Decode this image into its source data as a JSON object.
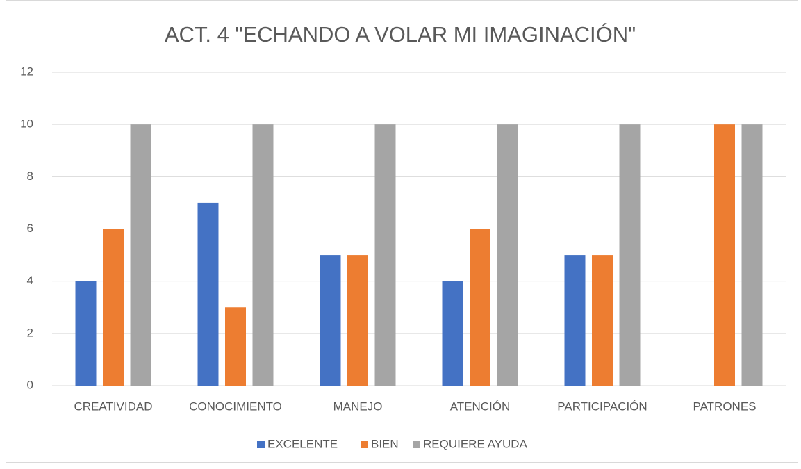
{
  "chart_data": {
    "type": "bar",
    "title": "ACT. 4 \"ECHANDO A VOLAR MI IMAGINACIÓN\"",
    "categories": [
      "CREATIVIDAD",
      "CONOCIMIENTO",
      "MANEJO",
      "ATENCIÓN",
      "PARTICIPACIÓN",
      "PATRONES"
    ],
    "series": [
      {
        "name": "EXCELENTE",
        "color": "#4472c4",
        "values": [
          4,
          7,
          5,
          4,
          5,
          0
        ]
      },
      {
        "name": "BIEN",
        "color": "#ed7d31",
        "values": [
          6,
          3,
          5,
          6,
          5,
          10
        ]
      },
      {
        "name": "REQUIERE AYUDA",
        "color": "#a5a5a5",
        "values": [
          10,
          10,
          10,
          10,
          10,
          10
        ]
      }
    ],
    "ylim": [
      0,
      12
    ],
    "yticks": [
      0,
      2,
      4,
      6,
      8,
      10,
      12
    ],
    "grid": true,
    "legend": "bottom"
  }
}
